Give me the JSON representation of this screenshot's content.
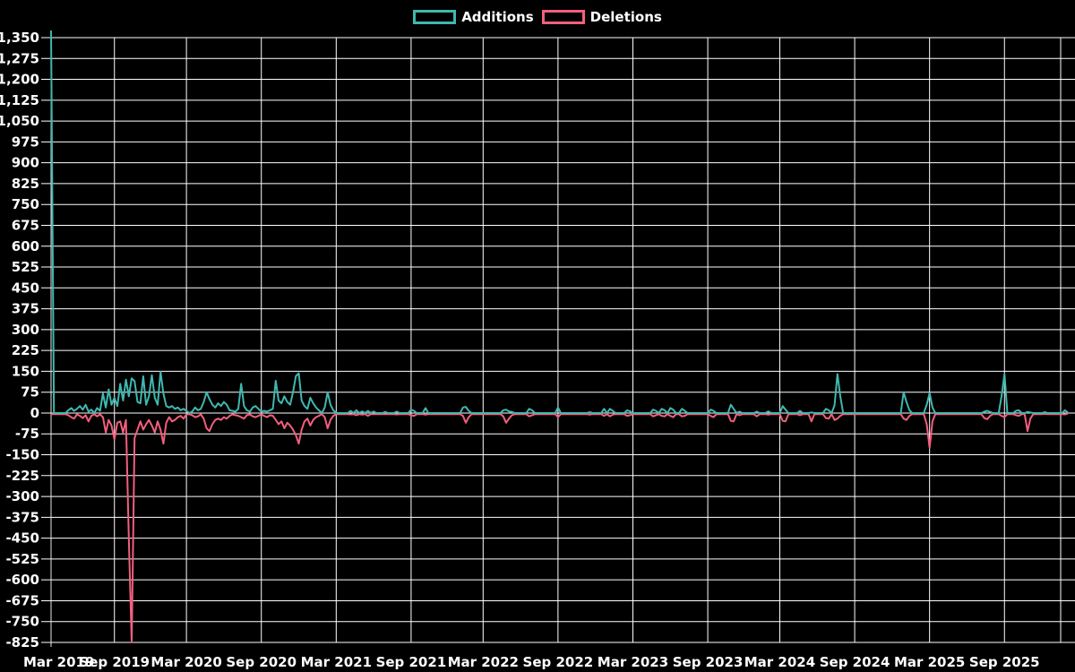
{
  "colors": {
    "background": "#000000",
    "additions": "#3fb8b0",
    "deletions": "#f25f7d",
    "gridline": "#ffffff",
    "tick_text": "#ffffff",
    "axis_line": "#e8e8e8"
  },
  "chart_data": {
    "type": "line",
    "title": "",
    "xlabel": "",
    "ylabel": "",
    "legend_position": "top-center",
    "grid": true,
    "y_axis": {
      "min": -825,
      "max": 1350,
      "step": 75,
      "tick_labels": [
        "1,350",
        "1,275",
        "1,200",
        "1,125",
        "1,050",
        "975",
        "900",
        "825",
        "750",
        "675",
        "600",
        "525",
        "450",
        "375",
        "300",
        "225",
        "150",
        "75",
        "0",
        "-75",
        "-150",
        "-225",
        "-300",
        "-375",
        "-450",
        "-525",
        "-600",
        "-675",
        "-750",
        "-825"
      ]
    },
    "x_axis": {
      "unit": "week",
      "weeks_total": 354,
      "tick_labels": [
        "Mar 2019",
        "Sep 2019",
        "Mar 2020",
        "Sep 2020",
        "Mar 2021",
        "Sep 2021",
        "Mar 2022",
        "Sep 2022",
        "Mar 2023",
        "Sep 2023",
        "Mar 2024",
        "Sep 2024",
        "Mar 2025",
        "Sep 2025"
      ],
      "tick_weeks": [
        0,
        22,
        47,
        73,
        99,
        125,
        150,
        176,
        202,
        228,
        253,
        279,
        305,
        331
      ]
    },
    "series": [
      {
        "name": "Additions",
        "color": "#3fb8b0",
        "peak": 1375
      },
      {
        "name": "Deletions",
        "color": "#f25f7d",
        "peak": -825
      }
    ],
    "points_note": "triplets [week_index, additions, deletions]; all unlisted weeks are [w,0,0]",
    "points": [
      [
        0,
        1375,
        0
      ],
      [
        6,
        10,
        -8
      ],
      [
        7,
        18,
        -15
      ],
      [
        8,
        8,
        -20
      ],
      [
        9,
        15,
        -5
      ],
      [
        10,
        25,
        -10
      ],
      [
        11,
        12,
        -18
      ],
      [
        12,
        30,
        -8
      ],
      [
        13,
        5,
        -30
      ],
      [
        14,
        12,
        -10
      ],
      [
        16,
        18,
        -12
      ],
      [
        17,
        8,
        -5
      ],
      [
        18,
        70,
        -15
      ],
      [
        19,
        20,
        -70
      ],
      [
        20,
        85,
        -25
      ],
      [
        21,
        30,
        -45
      ],
      [
        22,
        55,
        -95
      ],
      [
        23,
        25,
        -35
      ],
      [
        24,
        105,
        -30
      ],
      [
        25,
        45,
        -70
      ],
      [
        26,
        120,
        -25
      ],
      [
        27,
        60,
        -450
      ],
      [
        28,
        125,
        -825
      ],
      [
        29,
        115,
        -90
      ],
      [
        30,
        40,
        -60
      ],
      [
        31,
        35,
        -30
      ],
      [
        32,
        132,
        -60
      ],
      [
        33,
        30,
        -40
      ],
      [
        34,
        60,
        -25
      ],
      [
        35,
        136,
        -45
      ],
      [
        36,
        55,
        -70
      ],
      [
        37,
        30,
        -30
      ],
      [
        38,
        148,
        -60
      ],
      [
        39,
        70,
        -110
      ],
      [
        40,
        25,
        -35
      ],
      [
        41,
        20,
        -15
      ],
      [
        42,
        25,
        -30
      ],
      [
        43,
        15,
        -25
      ],
      [
        44,
        20,
        -15
      ],
      [
        45,
        10,
        -10
      ],
      [
        46,
        15,
        -20
      ],
      [
        47,
        8,
        -5
      ],
      [
        49,
        5,
        -8
      ],
      [
        50,
        20,
        -15
      ],
      [
        51,
        10,
        -12
      ],
      [
        52,
        15,
        -5
      ],
      [
        53,
        40,
        -20
      ],
      [
        54,
        75,
        -55
      ],
      [
        55,
        50,
        -65
      ],
      [
        56,
        30,
        -40
      ],
      [
        57,
        20,
        -25
      ],
      [
        58,
        35,
        -20
      ],
      [
        59,
        25,
        -25
      ],
      [
        60,
        40,
        -15
      ],
      [
        61,
        30,
        -20
      ],
      [
        62,
        10,
        -10
      ],
      [
        63,
        8,
        -5
      ],
      [
        64,
        5,
        -8
      ],
      [
        65,
        15,
        -10
      ],
      [
        66,
        105,
        -15
      ],
      [
        67,
        25,
        -20
      ],
      [
        68,
        10,
        -8
      ],
      [
        69,
        5,
        -5
      ],
      [
        70,
        20,
        -12
      ],
      [
        71,
        25,
        -15
      ],
      [
        72,
        15,
        -10
      ],
      [
        73,
        5,
        -5
      ],
      [
        74,
        8,
        -10
      ],
      [
        75,
        5,
        -15
      ],
      [
        76,
        10,
        -8
      ],
      [
        77,
        15,
        -10
      ],
      [
        78,
        116,
        -25
      ],
      [
        79,
        45,
        -40
      ],
      [
        80,
        35,
        -30
      ],
      [
        81,
        60,
        -55
      ],
      [
        82,
        40,
        -35
      ],
      [
        83,
        30,
        -45
      ],
      [
        84,
        75,
        -60
      ],
      [
        85,
        133,
        -80
      ],
      [
        86,
        143,
        -110
      ],
      [
        87,
        45,
        -60
      ],
      [
        88,
        25,
        -30
      ],
      [
        89,
        15,
        -20
      ],
      [
        90,
        55,
        -45
      ],
      [
        91,
        35,
        -25
      ],
      [
        92,
        20,
        -15
      ],
      [
        93,
        10,
        -10
      ],
      [
        95,
        20,
        -15
      ],
      [
        96,
        75,
        -55
      ],
      [
        97,
        30,
        -25
      ],
      [
        98,
        10,
        -10
      ],
      [
        104,
        8,
        -5
      ],
      [
        106,
        10,
        -8
      ],
      [
        108,
        6,
        -6
      ],
      [
        110,
        8,
        -10
      ],
      [
        112,
        5,
        -4
      ],
      [
        116,
        4,
        -4
      ],
      [
        120,
        5,
        -5
      ],
      [
        125,
        12,
        -8
      ],
      [
        126,
        8,
        -10
      ],
      [
        130,
        18,
        -6
      ],
      [
        143,
        20,
        -10
      ],
      [
        144,
        22,
        -35
      ],
      [
        145,
        8,
        -15
      ],
      [
        157,
        10,
        -12
      ],
      [
        158,
        12,
        -35
      ],
      [
        159,
        6,
        -20
      ],
      [
        160,
        4,
        -8
      ],
      [
        166,
        15,
        -12
      ],
      [
        167,
        10,
        -8
      ],
      [
        176,
        20,
        -15
      ],
      [
        187,
        3,
        -6
      ],
      [
        192,
        15,
        -10
      ],
      [
        194,
        15,
        -12
      ],
      [
        195,
        8,
        -6
      ],
      [
        200,
        10,
        -10
      ],
      [
        201,
        6,
        -8
      ],
      [
        209,
        12,
        -12
      ],
      [
        210,
        8,
        -8
      ],
      [
        212,
        15,
        -10
      ],
      [
        213,
        10,
        -12
      ],
      [
        215,
        18,
        -10
      ],
      [
        216,
        12,
        -15
      ],
      [
        219,
        15,
        -12
      ],
      [
        220,
        8,
        -10
      ],
      [
        229,
        12,
        -10
      ],
      [
        230,
        8,
        -15
      ],
      [
        236,
        30,
        -28
      ],
      [
        237,
        15,
        -30
      ],
      [
        239,
        5,
        -8
      ],
      [
        245,
        5,
        -12
      ],
      [
        249,
        6,
        -6
      ],
      [
        254,
        25,
        -28
      ],
      [
        255,
        12,
        -30
      ],
      [
        260,
        8,
        -8
      ],
      [
        264,
        2,
        -30
      ],
      [
        269,
        15,
        -18
      ],
      [
        270,
        10,
        -20
      ],
      [
        272,
        28,
        -25
      ],
      [
        273,
        140,
        -20
      ],
      [
        274,
        60,
        -10
      ],
      [
        296,
        75,
        -20
      ],
      [
        297,
        40,
        -25
      ],
      [
        298,
        10,
        -10
      ],
      [
        304,
        30,
        -40
      ],
      [
        305,
        72,
        -125
      ],
      [
        306,
        20,
        -30
      ],
      [
        324,
        5,
        -18
      ],
      [
        325,
        8,
        -22
      ],
      [
        326,
        4,
        -10
      ],
      [
        330,
        60,
        -10
      ],
      [
        331,
        140,
        -15
      ],
      [
        335,
        8,
        -8
      ],
      [
        336,
        10,
        -10
      ],
      [
        339,
        4,
        -65
      ],
      [
        340,
        2,
        -20
      ],
      [
        345,
        3,
        -3
      ],
      [
        352,
        10,
        -5
      ],
      [
        353,
        2,
        -2
      ]
    ]
  }
}
